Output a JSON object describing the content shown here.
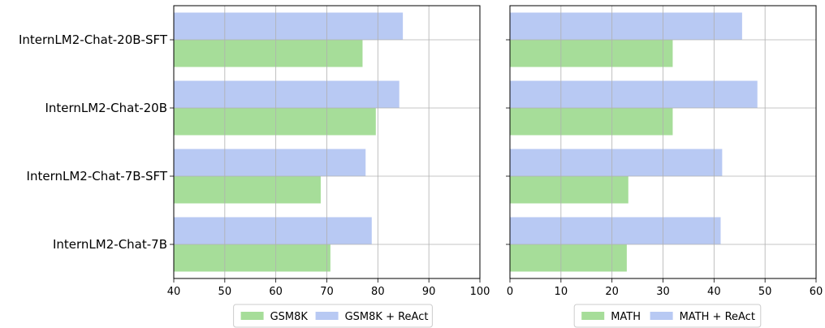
{
  "chart_data": [
    {
      "type": "bar",
      "orientation": "horizontal",
      "categories": [
        "InternLM2-Chat-20B-SFT",
        "InternLM2-Chat-20B",
        "InternLM2-Chat-7B-SFT",
        "InternLM2-Chat-7B"
      ],
      "series": [
        {
          "name": "GSM8K",
          "values": [
            77.0,
            79.6,
            68.8,
            70.7
          ],
          "color": "#a6dd99"
        },
        {
          "name": "GSM8K + ReAct",
          "values": [
            84.9,
            84.2,
            77.6,
            78.8
          ],
          "color": "#b8c9f3"
        }
      ],
      "xlim": [
        40,
        100
      ],
      "xticks": [
        "40",
        "50",
        "60",
        "70",
        "80",
        "90",
        "100"
      ],
      "grid": true,
      "legend_position": "bottom-center"
    },
    {
      "type": "bar",
      "orientation": "horizontal",
      "categories": [
        "InternLM2-Chat-20B-SFT",
        "InternLM2-Chat-20B",
        "InternLM2-Chat-7B-SFT",
        "InternLM2-Chat-7B"
      ],
      "series": [
        {
          "name": "MATH",
          "values": [
            31.9,
            31.9,
            23.2,
            22.9
          ],
          "color": "#a6dd99"
        },
        {
          "name": "MATH + ReAct",
          "values": [
            45.5,
            48.5,
            41.6,
            41.3
          ],
          "color": "#b8c9f3"
        }
      ],
      "xlim": [
        0,
        60
      ],
      "xticks": [
        "0",
        "10",
        "20",
        "30",
        "40",
        "50",
        "60"
      ],
      "grid": true,
      "legend_position": "bottom-center"
    }
  ]
}
